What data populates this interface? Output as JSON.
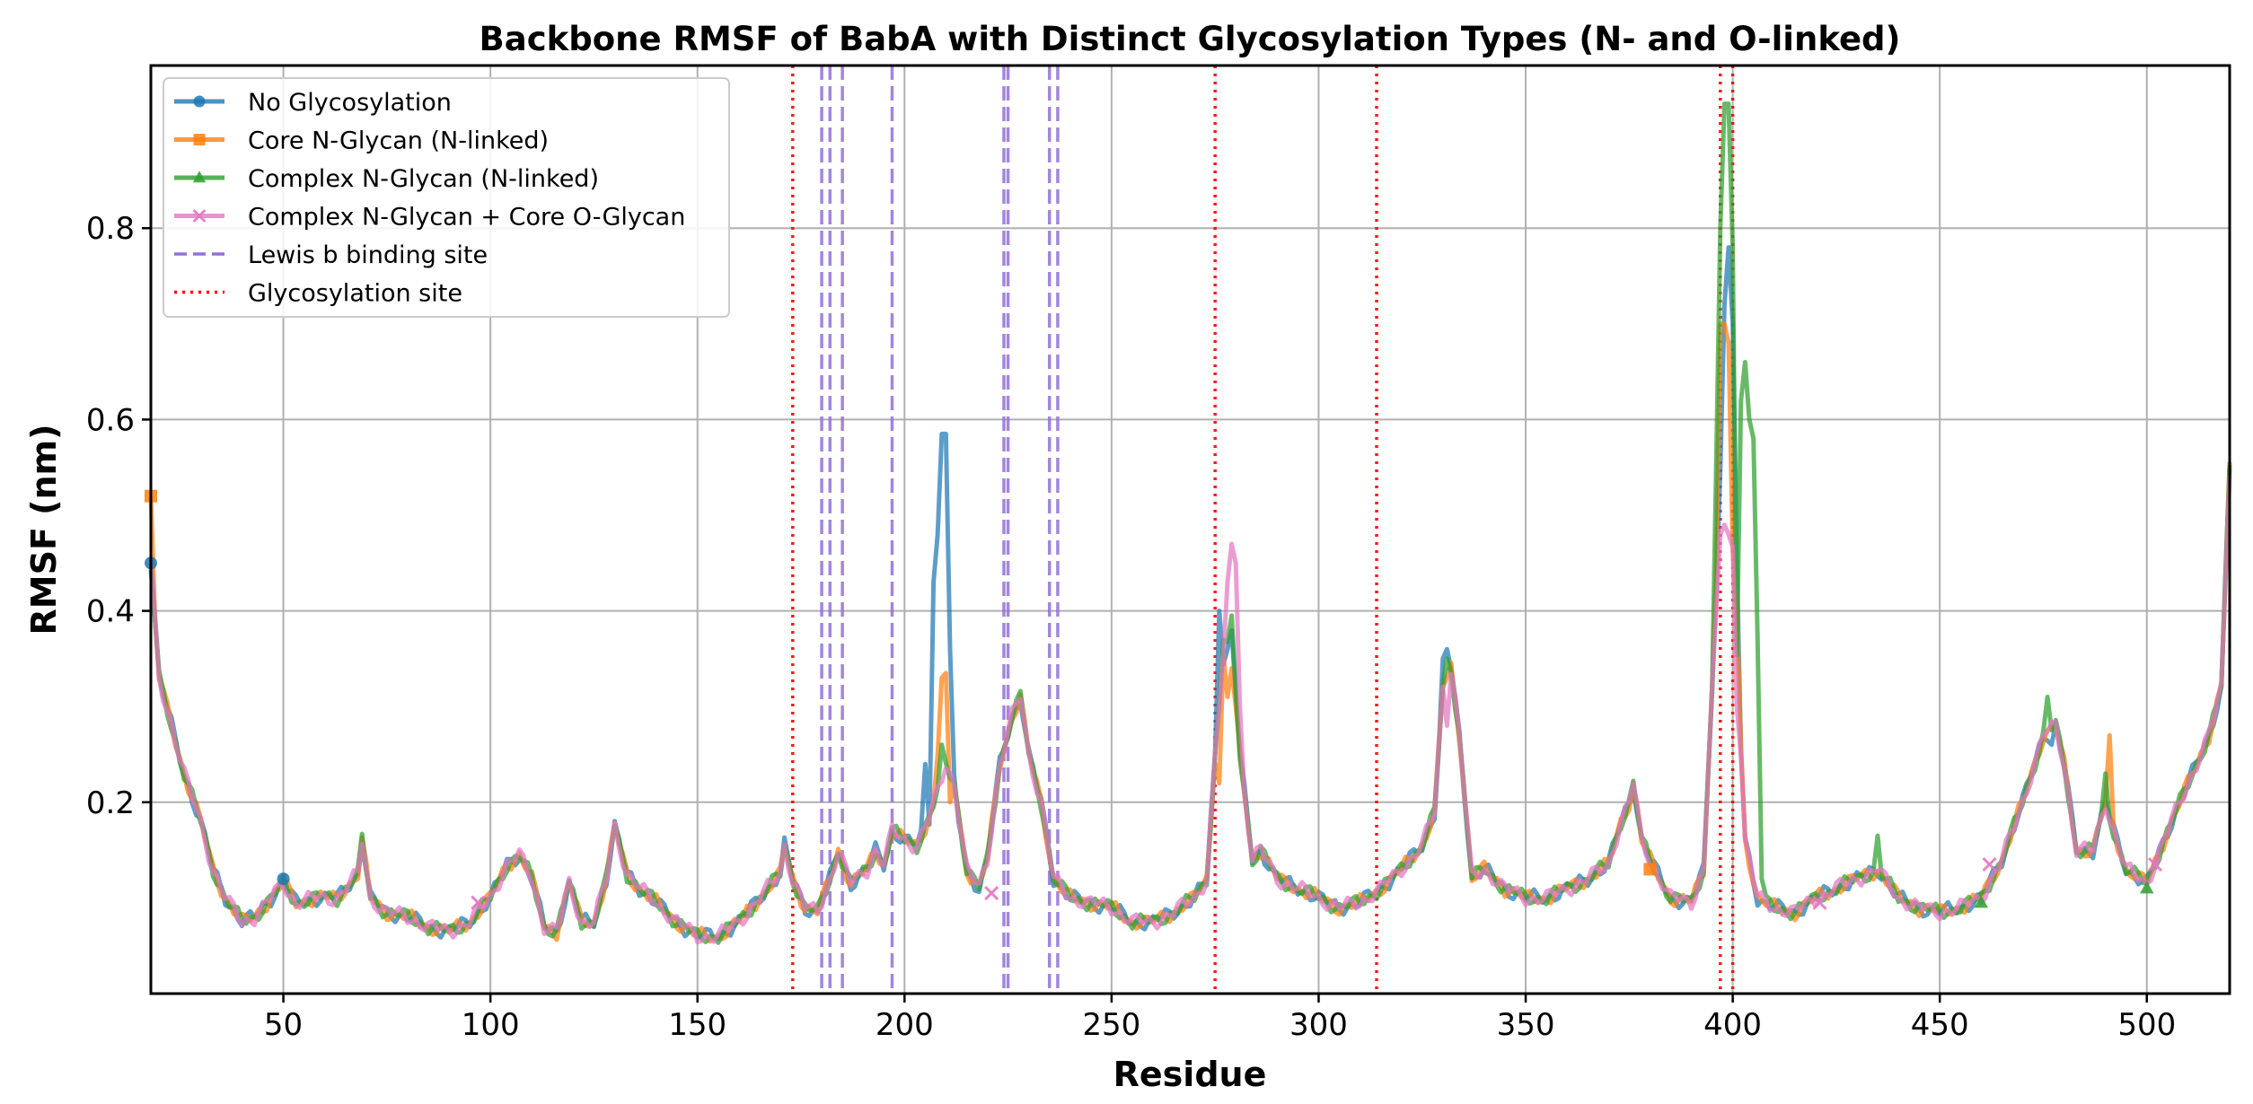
{
  "chart_data": {
    "type": "line",
    "title": "Backbone RMSF of BabA with Distinct Glycosylation Types (N- and O-linked)",
    "xlabel": "Residue",
    "ylabel": "RMSF (nm)",
    "xlim": [
      18,
      520
    ],
    "ylim": [
      0.0,
      0.97
    ],
    "grid": true,
    "legend_position": "top-left",
    "x_ticks": [
      50,
      100,
      150,
      200,
      250,
      300,
      350,
      400,
      450,
      500
    ],
    "x_tick_labels": [
      "50",
      "100",
      "150",
      "200",
      "250",
      "300",
      "350",
      "400",
      "450",
      "500"
    ],
    "y_ticks": [
      0.2,
      0.4,
      0.6,
      0.8
    ],
    "y_tick_labels": [
      "0.2",
      "0.4",
      "0.6",
      "0.8"
    ],
    "baseline": [
      [
        18,
        0.45
      ],
      [
        20,
        0.33
      ],
      [
        23,
        0.28
      ],
      [
        26,
        0.23
      ],
      [
        30,
        0.18
      ],
      [
        33,
        0.13
      ],
      [
        36,
        0.1
      ],
      [
        40,
        0.075
      ],
      [
        43,
        0.08
      ],
      [
        47,
        0.1
      ],
      [
        50,
        0.115
      ],
      [
        53,
        0.095
      ],
      [
        58,
        0.1
      ],
      [
        63,
        0.1
      ],
      [
        66,
        0.115
      ],
      [
        68,
        0.125
      ],
      [
        69,
        0.16
      ],
      [
        71,
        0.1
      ],
      [
        75,
        0.085
      ],
      [
        80,
        0.08
      ],
      [
        85,
        0.07
      ],
      [
        90,
        0.065
      ],
      [
        95,
        0.075
      ],
      [
        100,
        0.1
      ],
      [
        104,
        0.135
      ],
      [
        107,
        0.145
      ],
      [
        110,
        0.12
      ],
      [
        113,
        0.07
      ],
      [
        116,
        0.065
      ],
      [
        119,
        0.115
      ],
      [
        122,
        0.075
      ],
      [
        125,
        0.075
      ],
      [
        128,
        0.12
      ],
      [
        130,
        0.175
      ],
      [
        133,
        0.125
      ],
      [
        136,
        0.11
      ],
      [
        140,
        0.095
      ],
      [
        145,
        0.075
      ],
      [
        150,
        0.06
      ],
      [
        155,
        0.06
      ],
      [
        160,
        0.075
      ],
      [
        165,
        0.1
      ],
      [
        170,
        0.125
      ],
      [
        171,
        0.155
      ],
      [
        173,
        0.12
      ],
      [
        176,
        0.09
      ],
      [
        179,
        0.085
      ],
      [
        182,
        0.12
      ],
      [
        184,
        0.15
      ],
      [
        187,
        0.115
      ],
      [
        191,
        0.13
      ],
      [
        193,
        0.15
      ],
      [
        195,
        0.135
      ],
      [
        197,
        0.17
      ],
      [
        200,
        0.16
      ],
      [
        203,
        0.155
      ],
      [
        206,
        0.185
      ],
      [
        208,
        0.21
      ],
      [
        210,
        0.24
      ],
      [
        212,
        0.22
      ],
      [
        215,
        0.13
      ],
      [
        218,
        0.11
      ],
      [
        220,
        0.14
      ],
      [
        223,
        0.24
      ],
      [
        226,
        0.29
      ],
      [
        228,
        0.31
      ],
      [
        230,
        0.25
      ],
      [
        233,
        0.2
      ],
      [
        236,
        0.12
      ],
      [
        240,
        0.1
      ],
      [
        245,
        0.095
      ],
      [
        250,
        0.09
      ],
      [
        255,
        0.075
      ],
      [
        260,
        0.075
      ],
      [
        265,
        0.085
      ],
      [
        270,
        0.1
      ],
      [
        273,
        0.12
      ],
      [
        275,
        0.25
      ],
      [
        277,
        0.35
      ],
      [
        279,
        0.38
      ],
      [
        281,
        0.25
      ],
      [
        284,
        0.14
      ],
      [
        286,
        0.15
      ],
      [
        290,
        0.12
      ],
      [
        295,
        0.11
      ],
      [
        300,
        0.1
      ],
      [
        305,
        0.09
      ],
      [
        310,
        0.095
      ],
      [
        315,
        0.11
      ],
      [
        320,
        0.13
      ],
      [
        325,
        0.155
      ],
      [
        328,
        0.19
      ],
      [
        330,
        0.32
      ],
      [
        332,
        0.34
      ],
      [
        334,
        0.27
      ],
      [
        337,
        0.12
      ],
      [
        340,
        0.13
      ],
      [
        345,
        0.11
      ],
      [
        350,
        0.1
      ],
      [
        355,
        0.1
      ],
      [
        360,
        0.11
      ],
      [
        365,
        0.12
      ],
      [
        370,
        0.135
      ],
      [
        373,
        0.18
      ],
      [
        375,
        0.2
      ],
      [
        376,
        0.22
      ],
      [
        378,
        0.16
      ],
      [
        380,
        0.14
      ],
      [
        385,
        0.1
      ],
      [
        390,
        0.095
      ],
      [
        393,
        0.13
      ],
      [
        395,
        0.32
      ],
      [
        397,
        0.55
      ],
      [
        398,
        0.63
      ],
      [
        399,
        0.58
      ],
      [
        401,
        0.35
      ],
      [
        403,
        0.16
      ],
      [
        406,
        0.1
      ],
      [
        410,
        0.09
      ],
      [
        415,
        0.085
      ],
      [
        420,
        0.1
      ],
      [
        425,
        0.11
      ],
      [
        430,
        0.12
      ],
      [
        435,
        0.13
      ],
      [
        440,
        0.1
      ],
      [
        445,
        0.09
      ],
      [
        450,
        0.085
      ],
      [
        455,
        0.09
      ],
      [
        460,
        0.1
      ],
      [
        465,
        0.14
      ],
      [
        470,
        0.2
      ],
      [
        475,
        0.27
      ],
      [
        478,
        0.28
      ],
      [
        480,
        0.24
      ],
      [
        483,
        0.15
      ],
      [
        487,
        0.15
      ],
      [
        490,
        0.2
      ],
      [
        492,
        0.17
      ],
      [
        495,
        0.13
      ],
      [
        500,
        0.115
      ],
      [
        505,
        0.17
      ],
      [
        510,
        0.22
      ],
      [
        515,
        0.27
      ],
      [
        518,
        0.32
      ],
      [
        520,
        0.55
      ]
    ],
    "series": [
      {
        "name": "No Glycosylation",
        "color": "#1f77b4",
        "marker": "circle",
        "overrides": [
          [
            205,
            0.24
          ],
          [
            207,
            0.43
          ],
          [
            208,
            0.48
          ],
          [
            209,
            0.585
          ],
          [
            210,
            0.585
          ],
          [
            211,
            0.36
          ],
          [
            213,
            0.18
          ],
          [
            276,
            0.4
          ],
          [
            278,
            0.36
          ],
          [
            330,
            0.35
          ],
          [
            331,
            0.36
          ],
          [
            396,
            0.42
          ],
          [
            398,
            0.72
          ],
          [
            399,
            0.78
          ],
          [
            400,
            0.7
          ],
          [
            401,
            0.45
          ],
          [
            477,
            0.26
          ]
        ]
      },
      {
        "name": "Core N-Glycan (N-linked)",
        "color": "#ff7f0e",
        "marker": "square",
        "overrides": [
          [
            18,
            0.52
          ],
          [
            208,
            0.25
          ],
          [
            209,
            0.33
          ],
          [
            210,
            0.335
          ],
          [
            211,
            0.2
          ],
          [
            276,
            0.22
          ],
          [
            278,
            0.31
          ],
          [
            279,
            0.34
          ],
          [
            280,
            0.3
          ],
          [
            396,
            0.44
          ],
          [
            397,
            0.7
          ],
          [
            398,
            0.7
          ],
          [
            399,
            0.68
          ],
          [
            401,
            0.4
          ],
          [
            491,
            0.27
          ]
        ]
      },
      {
        "name": "Complex N-Glycan (N-linked)",
        "color": "#2ca02c",
        "marker": "triangle",
        "overrides": [
          [
            209,
            0.26
          ],
          [
            277,
            0.37
          ],
          [
            279,
            0.395
          ],
          [
            331,
            0.35
          ],
          [
            396,
            0.55
          ],
          [
            397,
            0.8
          ],
          [
            398,
            0.93
          ],
          [
            399,
            0.93
          ],
          [
            400,
            0.78
          ],
          [
            402,
            0.62
          ],
          [
            403,
            0.66
          ],
          [
            404,
            0.6
          ],
          [
            405,
            0.58
          ],
          [
            406,
            0.37
          ],
          [
            407,
            0.12
          ],
          [
            435,
            0.165
          ],
          [
            476,
            0.31
          ],
          [
            490,
            0.23
          ]
        ]
      },
      {
        "name": "Complex N-Glycan + Core O-Glycan",
        "color": "#e377c2",
        "marker": "x",
        "overrides": [
          [
            278,
            0.43
          ],
          [
            279,
            0.47
          ],
          [
            280,
            0.45
          ],
          [
            281,
            0.3
          ],
          [
            331,
            0.28
          ],
          [
            396,
            0.4
          ],
          [
            397,
            0.48
          ],
          [
            398,
            0.49
          ],
          [
            399,
            0.48
          ],
          [
            401,
            0.3
          ],
          [
            491,
            0.18
          ]
        ]
      }
    ],
    "marker_points": [
      {
        "series": 0,
        "points": [
          [
            18,
            0.45
          ],
          [
            50,
            0.12
          ]
        ]
      },
      {
        "series": 1,
        "points": [
          [
            18,
            0.52
          ],
          [
            380,
            0.13
          ]
        ]
      },
      {
        "series": 2,
        "points": [
          [
            460,
            0.095
          ],
          [
            500,
            0.11
          ]
        ]
      },
      {
        "series": 3,
        "points": [
          [
            97,
            0.095
          ],
          [
            221,
            0.105
          ],
          [
            421,
            0.095
          ],
          [
            462,
            0.135
          ],
          [
            502,
            0.135
          ]
        ]
      }
    ],
    "lewis_b_binding_sites": [
      180,
      182,
      185,
      197,
      224,
      225,
      235,
      237
    ],
    "glycosylation_sites": [
      173,
      275,
      314,
      397,
      400
    ],
    "legend": [
      {
        "label": "No Glycosylation",
        "style": "line-marker",
        "color": "#1f77b4",
        "marker": "circle"
      },
      {
        "label": "Core N-Glycan (N-linked)",
        "style": "line-marker",
        "color": "#ff7f0e",
        "marker": "square"
      },
      {
        "label": "Complex N-Glycan (N-linked)",
        "style": "line-marker",
        "color": "#2ca02c",
        "marker": "triangle"
      },
      {
        "label": "Complex N-Glycan + Core O-Glycan",
        "style": "line-marker",
        "color": "#e377c2",
        "marker": "x"
      },
      {
        "label": "Lewis b binding site",
        "style": "dashed",
        "color": "#9370db"
      },
      {
        "label": "Glycosylation site",
        "style": "dotted",
        "color": "#ff0000"
      }
    ]
  }
}
